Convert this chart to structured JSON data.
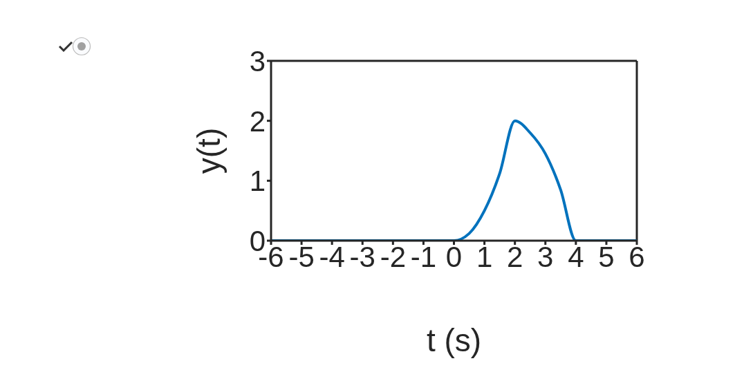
{
  "chart_data": {
    "type": "line",
    "xlabel": "t (s)",
    "ylabel": "y(t)",
    "x": [
      -6,
      0,
      0.5,
      1,
      1.5,
      2,
      2.5,
      3,
      3.5,
      4,
      6
    ],
    "series": [
      {
        "color": "#0072bd",
        "values": [
          0,
          0,
          0.12,
          0.5,
          1.12,
          2,
          1.8,
          1.45,
          0.85,
          0,
          0
        ]
      }
    ],
    "xlim": [
      -6,
      6
    ],
    "xticks": [
      -6,
      -5,
      -4,
      -3,
      -2,
      -1,
      0,
      1,
      2,
      3,
      4,
      5,
      6
    ],
    "ylim": [
      0,
      3
    ],
    "yticks": [
      0,
      1,
      2,
      3
    ],
    "grid": false,
    "legend": false,
    "marker": "none",
    "line_style": "solid"
  }
}
